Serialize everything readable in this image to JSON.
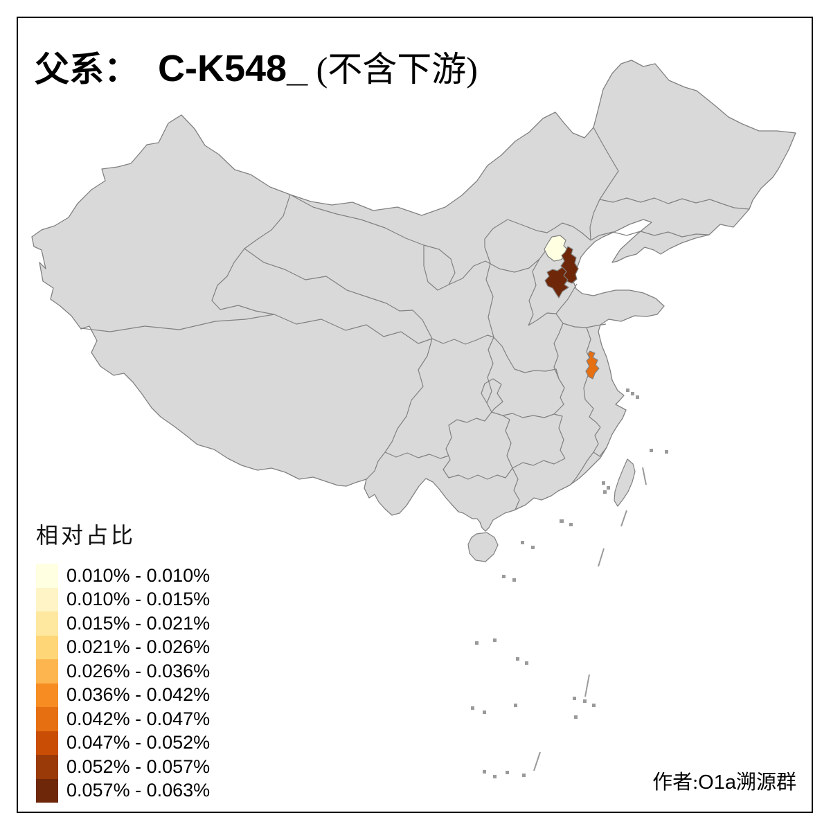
{
  "title": {
    "prefix": "父系：",
    "haplogroup": "C-K548_",
    "suffix": " (不含下游)"
  },
  "legend": {
    "title": "相对占比",
    "bins": [
      {
        "label": "0.010% - 0.010%",
        "color": "#FFFFE2"
      },
      {
        "label": "0.010% - 0.015%",
        "color": "#FFF4C5"
      },
      {
        "label": "0.015% - 0.021%",
        "color": "#FEE79E"
      },
      {
        "label": "0.021% - 0.026%",
        "color": "#FED677"
      },
      {
        "label": "0.026% - 0.036%",
        "color": "#FDB54F"
      },
      {
        "label": "0.036% - 0.042%",
        "color": "#F68C22"
      },
      {
        "label": "0.042% - 0.047%",
        "color": "#E66F12"
      },
      {
        "label": "0.047% - 0.052%",
        "color": "#C94D05"
      },
      {
        "label": "0.052% - 0.057%",
        "color": "#9A3A08"
      },
      {
        "label": "0.057% - 0.063%",
        "color": "#6E2708"
      }
    ]
  },
  "author": {
    "prefix": "作者:",
    "latin": "O1a",
    "suffix": "溯源群"
  },
  "map": {
    "land_fill": "#D9D9D9",
    "border_color": "#808080",
    "island_mark_color": "#9A9A9A",
    "regions": [
      {
        "id": "beijing-area",
        "bin": "0.010% - 0.010%",
        "color": "#FFFFE2"
      },
      {
        "id": "tianjin-area",
        "bin": "0.057% - 0.063%",
        "color": "#6E2708"
      },
      {
        "id": "south-of-tianjin-area",
        "bin": "0.057% - 0.063%",
        "color": "#6E2708"
      },
      {
        "id": "north-anhui-area",
        "bin": "0.042% - 0.047%",
        "color": "#E66F12"
      }
    ]
  }
}
